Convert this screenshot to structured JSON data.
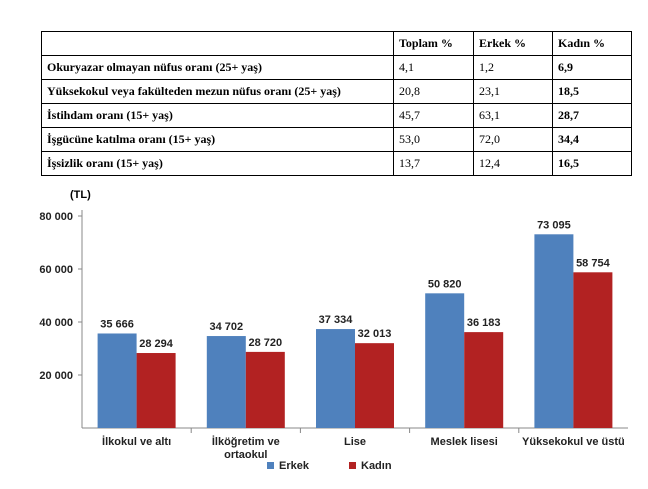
{
  "table": {
    "headers": [
      "",
      "Toplam %",
      "Erkek %",
      "Kadın %"
    ],
    "rows": [
      {
        "label": "Okuryazar olmayan nüfus oranı (25+ yaş)",
        "total": "4,1",
        "male": "1,2",
        "female": "6,9"
      },
      {
        "label": "Yüksekokul veya fakülteden mezun nüfus oranı (25+ yaş)",
        "total": "20,8",
        "male": "23,1",
        "female": "18,5"
      },
      {
        "label": "İstihdam oranı (15+ yaş)",
        "total": "45,7",
        "male": "63,1",
        "female": "28,7"
      },
      {
        "label": "İşgücüne katılma oranı (15+ yaş)",
        "total": "53,0",
        "male": "72,0",
        "female": "34,4"
      },
      {
        "label": "İşsizlik oranı (15+ yaş)",
        "total": "13,7",
        "male": "12,4",
        "female": "16,5"
      }
    ]
  },
  "chart_data": {
    "type": "bar",
    "unit_label": "(TL)",
    "categories": [
      [
        "İlkokul ve altı"
      ],
      [
        "İlköğretim ve",
        "ortaokul"
      ],
      [
        "Lise"
      ],
      [
        "Meslek lisesi"
      ],
      [
        "Yüksekokul ve üstü"
      ]
    ],
    "series": [
      {
        "name": "Erkek",
        "color": "#4f81bd",
        "values": [
          35666,
          34702,
          37334,
          50820,
          73095
        ],
        "labels": [
          "35 666",
          "34 702",
          "37 334",
          "50 820",
          "73 095"
        ]
      },
      {
        "name": "Kadın",
        "color": "#b22222",
        "values": [
          28294,
          28720,
          32013,
          36183,
          58754
        ],
        "labels": [
          "28 294",
          "28 720",
          "32 013",
          "36 183",
          "58 754"
        ]
      }
    ],
    "ylim": [
      0,
      80000
    ],
    "yticks": [
      20000,
      40000,
      60000,
      80000
    ],
    "ytick_labels": [
      "20 000",
      "40 000",
      "60 000",
      "80 000"
    ],
    "grid": false,
    "legend": "bottom-center"
  }
}
